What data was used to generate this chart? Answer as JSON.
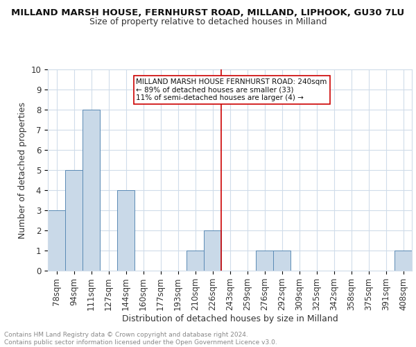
{
  "title1": "MILLAND MARSH HOUSE, FERNHURST ROAD, MILLAND, LIPHOOK, GU30 7LU",
  "title2": "Size of property relative to detached houses in Milland",
  "xlabel": "Distribution of detached houses by size in Milland",
  "ylabel": "Number of detached properties",
  "categories": [
    "78sqm",
    "94sqm",
    "111sqm",
    "127sqm",
    "144sqm",
    "160sqm",
    "177sqm",
    "193sqm",
    "210sqm",
    "226sqm",
    "243sqm",
    "259sqm",
    "276sqm",
    "292sqm",
    "309sqm",
    "325sqm",
    "342sqm",
    "358sqm",
    "375sqm",
    "391sqm",
    "408sqm"
  ],
  "values": [
    3,
    5,
    8,
    0,
    4,
    0,
    0,
    0,
    1,
    2,
    0,
    0,
    1,
    1,
    0,
    0,
    0,
    0,
    0,
    0,
    1
  ],
  "bar_color": "#c9d9e8",
  "bar_edge_color": "#5a8ab5",
  "highlight_index": 10,
  "highlight_color": "#cc0000",
  "annotation_title": "MILLAND MARSH HOUSE FERNHURST ROAD: 240sqm",
  "annotation_line1": "← 89% of detached houses are smaller (33)",
  "annotation_line2": "11% of semi-detached houses are larger (4) →",
  "ylim": [
    0,
    10
  ],
  "yticks": [
    0,
    1,
    2,
    3,
    4,
    5,
    6,
    7,
    8,
    9,
    10
  ],
  "footer": "Contains HM Land Registry data © Crown copyright and database right 2024.\nContains public sector information licensed under the Open Government Licence v3.0.",
  "grid_color": "#d0dcea",
  "background_color": "#ffffff",
  "title1_fontsize": 9.5,
  "title2_fontsize": 9.0,
  "xlabel_fontsize": 9.0,
  "ylabel_fontsize": 9.0,
  "tick_fontsize": 8.5,
  "ann_fontsize": 7.5,
  "footer_fontsize": 6.5
}
